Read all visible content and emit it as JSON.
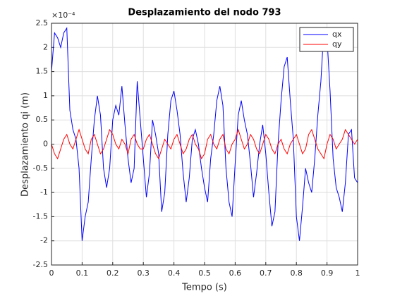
{
  "chart_data": {
    "type": "line",
    "title": "Desplazamiento del nodo 793",
    "xlabel": "Tempo (s)",
    "ylabel": "Desplazamiento qi (m)",
    "exponent_label": "×10⁻⁴",
    "x": [
      0,
      0.01,
      0.02,
      0.03,
      0.04,
      0.05,
      0.06,
      0.07,
      0.08,
      0.09,
      0.1,
      0.11,
      0.12,
      0.13,
      0.14,
      0.15,
      0.16,
      0.17,
      0.18,
      0.19,
      0.2,
      0.21,
      0.22,
      0.23,
      0.24,
      0.25,
      0.26,
      0.27,
      0.28,
      0.29,
      0.3,
      0.31,
      0.32,
      0.33,
      0.34,
      0.35,
      0.36,
      0.37,
      0.38,
      0.39,
      0.4,
      0.41,
      0.42,
      0.43,
      0.44,
      0.45,
      0.46,
      0.47,
      0.48,
      0.49,
      0.5,
      0.51,
      0.52,
      0.53,
      0.54,
      0.55,
      0.56,
      0.57,
      0.58,
      0.59,
      0.6,
      0.61,
      0.62,
      0.63,
      0.64,
      0.65,
      0.66,
      0.67,
      0.68,
      0.69,
      0.7,
      0.71,
      0.72,
      0.73,
      0.74,
      0.75,
      0.76,
      0.77,
      0.78,
      0.79,
      0.8,
      0.81,
      0.82,
      0.83,
      0.84,
      0.85,
      0.86,
      0.87,
      0.88,
      0.89,
      0.9,
      0.91,
      0.92,
      0.93,
      0.94,
      0.95,
      0.96,
      0.97,
      0.98,
      0.99,
      1
    ],
    "series": [
      {
        "name": "qx",
        "color": "#0000ff",
        "values": [
          1.5,
          2.3,
          2.2,
          2.0,
          2.3,
          2.4,
          0.7,
          0.3,
          0.1,
          -0.5,
          -2.0,
          -1.5,
          -1.2,
          -0.3,
          0.5,
          1.0,
          0.6,
          -0.5,
          -0.9,
          -0.5,
          0.5,
          0.8,
          0.6,
          1.2,
          0.4,
          -0.3,
          -0.8,
          -0.5,
          1.3,
          0.5,
          -0.3,
          -1.1,
          -0.6,
          0.5,
          0.2,
          -0.2,
          -1.4,
          -1.0,
          0.2,
          0.9,
          1.1,
          0.7,
          0.2,
          -0.6,
          -1.2,
          -0.7,
          0.1,
          0.3,
          0.0,
          -0.5,
          -0.9,
          -1.2,
          -0.3,
          0.2,
          0.9,
          1.2,
          0.8,
          -0.5,
          -1.2,
          -1.5,
          -0.4,
          0.6,
          0.9,
          0.5,
          0.2,
          -0.4,
          -1.1,
          -0.6,
          0.0,
          0.4,
          -0.2,
          -1.0,
          -1.7,
          -1.4,
          0.0,
          0.9,
          1.6,
          1.8,
          0.9,
          0.1,
          -1.5,
          -2.0,
          -1.3,
          -0.5,
          -0.8,
          -1.0,
          -0.3,
          0.6,
          1.3,
          2.4,
          2.2,
          1.1,
          -0.3,
          -0.9,
          -1.1,
          -1.4,
          -0.8,
          0.2,
          0.3,
          -0.7,
          -0.8
        ]
      },
      {
        "name": "qy",
        "color": "#ff0000",
        "values": [
          0,
          -0.2,
          -0.3,
          -0.1,
          0.1,
          0.2,
          0.0,
          -0.1,
          0.1,
          0.3,
          0.1,
          -0.1,
          -0.2,
          0.1,
          0.2,
          0.0,
          -0.2,
          -0.1,
          0.1,
          0.3,
          0.2,
          0.0,
          -0.1,
          0.1,
          0.0,
          -0.2,
          0.1,
          0.2,
          0.0,
          -0.1,
          -0.1,
          0.1,
          0.2,
          0.0,
          -0.2,
          -0.3,
          -0.1,
          0.1,
          0.0,
          -0.1,
          0.1,
          0.2,
          0.0,
          -0.2,
          -0.1,
          0.1,
          0.2,
          0.0,
          -0.1,
          -0.3,
          -0.2,
          0.1,
          0.2,
          0.0,
          -0.1,
          0.1,
          0.2,
          -0.1,
          -0.2,
          0.0,
          0.1,
          0.3,
          0.1,
          -0.1,
          0.0,
          0.2,
          0.1,
          -0.1,
          -0.2,
          0.0,
          0.2,
          0.1,
          -0.1,
          -0.2,
          0.0,
          0.1,
          -0.1,
          -0.2,
          0.0,
          0.1,
          0.2,
          0.0,
          -0.2,
          -0.1,
          0.2,
          0.3,
          0.1,
          -0.1,
          -0.2,
          -0.3,
          0.0,
          0.2,
          0.1,
          -0.1,
          0.0,
          0.1,
          0.3,
          0.2,
          0.1,
          0.0,
          0.1
        ]
      }
    ],
    "xlim": [
      0,
      1
    ],
    "xticks": [
      0,
      0.1,
      0.2,
      0.3,
      0.4,
      0.5,
      0.6,
      0.7,
      0.8,
      0.9,
      1
    ],
    "ylim": [
      -2.5,
      2.5
    ],
    "yticks": [
      -2.5,
      -2,
      -1.5,
      -1,
      -0.5,
      0,
      0.5,
      1,
      1.5,
      2,
      2.5
    ],
    "grid": true,
    "legend": "northeast"
  }
}
